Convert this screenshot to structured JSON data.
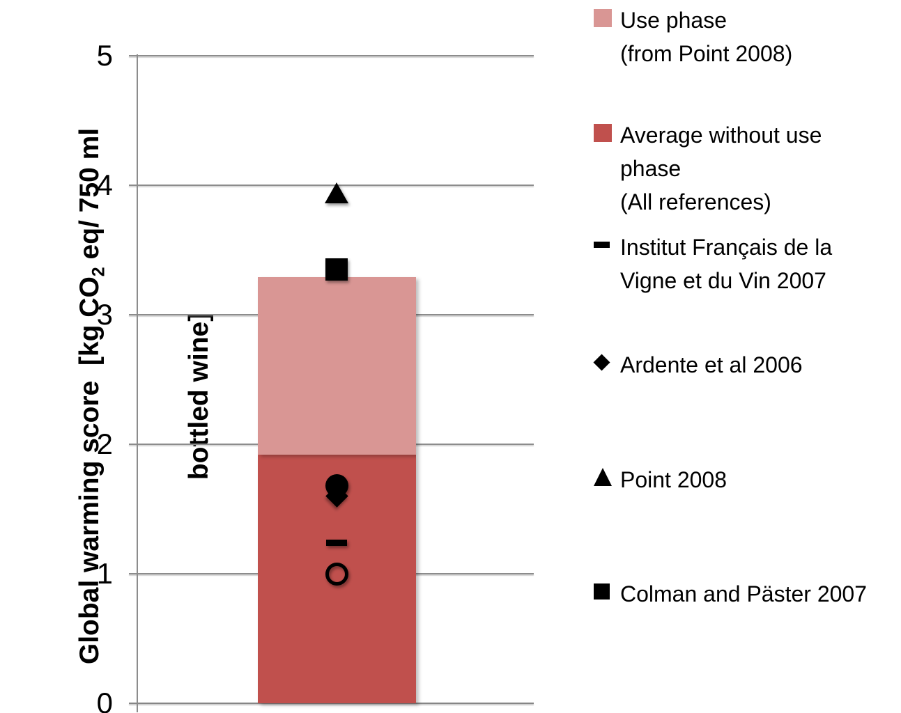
{
  "chart_data": {
    "type": "bar",
    "title": "",
    "ylabel": {
      "pre": "Global warming score  [kg CO",
      "sub": "2",
      "post": " eq/ 750 ml",
      "line2": "bottled wine]"
    },
    "ylim": [
      0,
      5
    ],
    "yticks": [
      "0",
      "1",
      "2",
      "3",
      "4",
      "5"
    ],
    "grid": true,
    "legend_position": "right",
    "colors": {
      "bar_dark": "#C0504D",
      "bar_light": "#D99694",
      "marker": "#000000",
      "axis": "#8C8C8C"
    },
    "bar": {
      "category": "bottled wine",
      "segments": [
        {
          "name": "Average without use phase (All references)",
          "from": 0,
          "to": 1.92,
          "color": "#C0504D"
        },
        {
          "name": "Use phase (from Point 2008)",
          "from": 1.92,
          "to": 3.29,
          "color": "#D99694"
        }
      ],
      "total": 3.29
    },
    "markers": [
      {
        "shape": "triangle",
        "series": "Point 2008",
        "value": 3.94
      },
      {
        "shape": "square",
        "series": "Colman and Päster 2007",
        "value": 3.35
      },
      {
        "shape": "circle-filled",
        "series": "",
        "value": 1.68
      },
      {
        "shape": "diamond",
        "series": "Ardente et al 2006",
        "value": 1.6
      },
      {
        "shape": "dash",
        "series": "Institut Français de la Vigne et du Vin 2007",
        "value": 1.24
      },
      {
        "shape": "circle-open",
        "series": "",
        "value": 1.0
      }
    ],
    "legend": [
      {
        "swatch": "square",
        "color": "#D99694",
        "lines": [
          "Use phase",
          "(from Point 2008)"
        ]
      },
      {
        "swatch": "square",
        "color": "#C0504D",
        "lines": [
          "Average without use",
          "phase",
          "(All references)"
        ]
      },
      {
        "swatch": "dash",
        "color": "#000000",
        "lines": [
          "Institut Français de la",
          "Vigne et du Vin 2007"
        ]
      },
      {
        "swatch": "diamond",
        "color": "#000000",
        "lines": [
          "Ardente et al 2006"
        ]
      },
      {
        "swatch": "triangle",
        "color": "#000000",
        "lines": [
          "Point 2008"
        ]
      },
      {
        "swatch": "square-black",
        "color": "#000000",
        "lines": [
          "Colman and Päster 2007"
        ]
      }
    ]
  }
}
